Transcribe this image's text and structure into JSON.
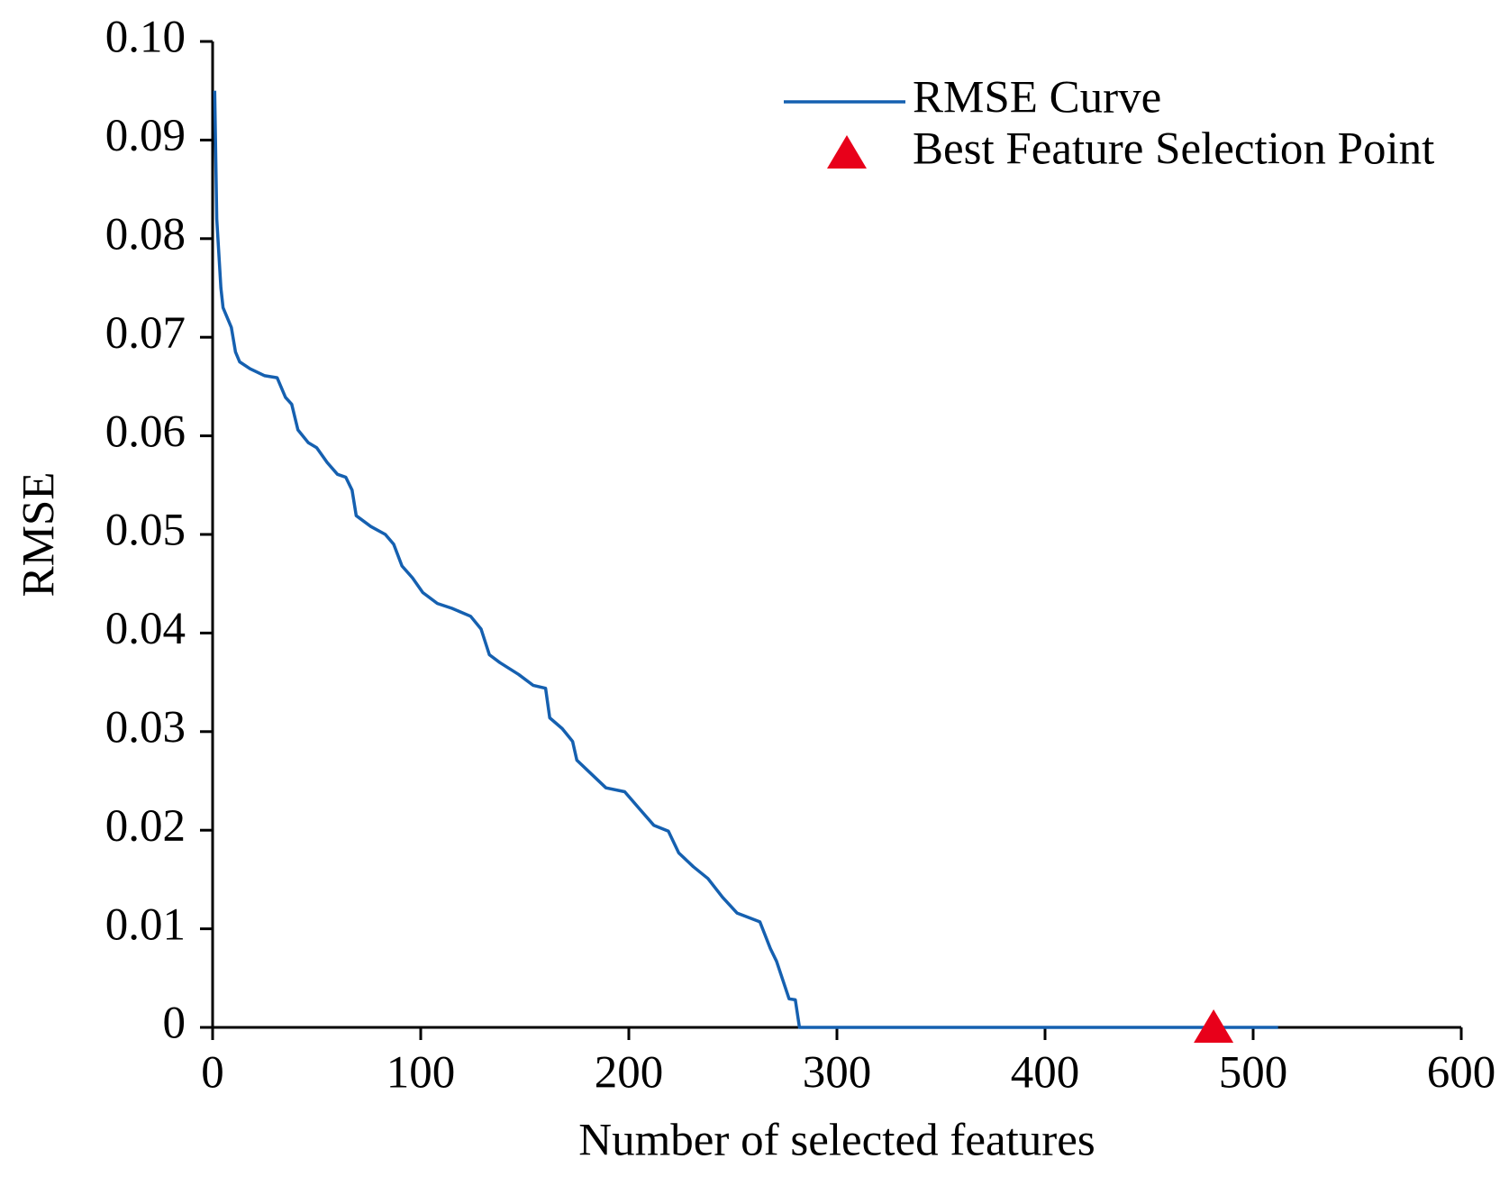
{
  "chart_data": {
    "type": "line",
    "x_label": "Number of selected features",
    "y_label": "RMSE",
    "xlim": [
      0,
      600
    ],
    "ylim": [
      0,
      0.1
    ],
    "xticks": [
      0,
      100,
      200,
      300,
      400,
      500,
      600
    ],
    "yticks": [
      0,
      0.01,
      0.02,
      0.03,
      0.04,
      0.05,
      0.06,
      0.07,
      0.08,
      0.09,
      {
        "value": 0.1,
        "label": "0.10"
      }
    ],
    "grid": false,
    "legend": "upper right",
    "series": [
      {
        "name": "RMSE Curve",
        "color": "#1560b0",
        "marker": "none",
        "x": [
          1,
          2,
          4,
          5,
          9,
          11,
          13,
          18,
          25,
          31,
          35,
          38,
          41,
          46,
          50,
          55,
          60,
          64,
          67,
          69,
          76,
          83,
          87,
          91,
          96,
          101,
          108,
          115,
          124,
          129,
          133,
          138,
          147,
          154,
          160,
          162,
          168,
          173,
          175,
          182,
          189,
          198,
          205,
          212,
          219,
          224,
          231,
          238,
          245,
          252,
          263,
          268,
          271,
          277,
          280,
          282,
          512
        ],
        "values": [
          0.095,
          0.082,
          0.075,
          0.073,
          0.071,
          0.0685,
          0.0675,
          0.0668,
          0.0661,
          0.0659,
          0.0639,
          0.0632,
          0.0606,
          0.0593,
          0.0588,
          0.0573,
          0.0561,
          0.0558,
          0.0545,
          0.0519,
          0.0508,
          0.05,
          0.049,
          0.0468,
          0.0456,
          0.0441,
          0.043,
          0.0425,
          0.0417,
          0.0404,
          0.0378,
          0.037,
          0.0358,
          0.0347,
          0.0344,
          0.0314,
          0.0303,
          0.029,
          0.0271,
          0.0257,
          0.0243,
          0.0239,
          0.0222,
          0.0205,
          0.0199,
          0.0177,
          0.0163,
          0.0151,
          0.0132,
          0.0116,
          0.0107,
          0.008,
          0.0067,
          0.0029,
          0.0028,
          0,
          0
        ]
      },
      {
        "name": "Best Feature Selection Point",
        "color": "#e8001a",
        "marker": "triangle",
        "x": [
          481
        ],
        "values": [
          0
        ]
      }
    ]
  }
}
